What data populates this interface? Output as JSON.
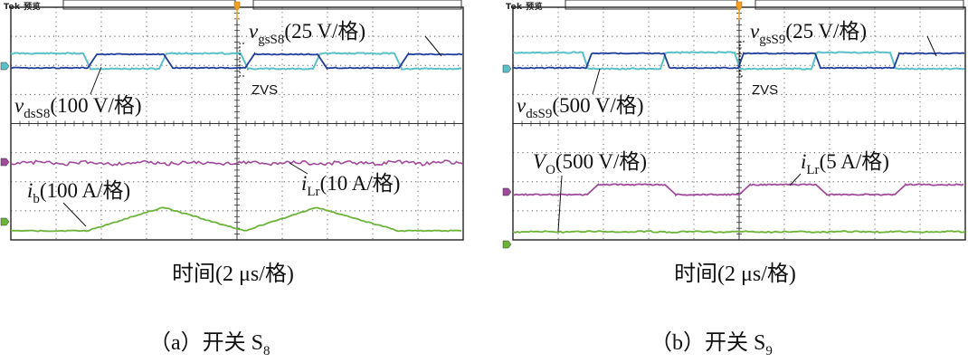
{
  "chart_data": [
    {
      "type": "line",
      "panel": "a",
      "oscilloscope_header": "Tek 预览",
      "xlabel": "时间(2 μs/格)",
      "caption": {
        "prefix": "（a）开关 S",
        "subscript": "8"
      },
      "annotations": {
        "zvs": "ZVS"
      },
      "series": [
        {
          "name": "v_gsS8",
          "label_main": "v",
          "label_sub": "gsS8",
          "label_rest": "(25 V/格)",
          "color": "#1f3d99",
          "type": "square_pulse"
        },
        {
          "name": "v_dsS8",
          "label_main": "v",
          "label_sub": "dsS8",
          "label_rest": "(100 V/格)",
          "color": "#5bc0c8",
          "type": "square_pulse"
        },
        {
          "name": "i_Lr",
          "label_main": "i",
          "label_sub": "Lr",
          "label_rest": "(10 A/格)",
          "color": "#a04a9c",
          "type": "noisy_flat"
        },
        {
          "name": "i_b",
          "label_main": "i",
          "label_sub": "b",
          "label_rest": "(100 A/格)",
          "color": "#6cb339",
          "type": "triangle"
        }
      ]
    },
    {
      "type": "line",
      "panel": "b",
      "oscilloscope_header": "Tek 预览",
      "xlabel": "时间(2 μs/格)",
      "caption": {
        "prefix": "（b）开关 S",
        "subscript": "9"
      },
      "annotations": {
        "zvs": "ZVS"
      },
      "series": [
        {
          "name": "v_gsS9",
          "label_main": "v",
          "label_sub": "gsS9",
          "label_rest": "(25 V/格)",
          "color": "#1f3d99",
          "type": "square_pulse"
        },
        {
          "name": "v_dsS9",
          "label_main": "v",
          "label_sub": "dsS9",
          "label_rest": "(500 V/格)",
          "color": "#5bc0c8",
          "type": "square_pulse"
        },
        {
          "name": "V_O",
          "label_main": "V",
          "label_sub": "O",
          "label_rest": "(500 V/格)",
          "color": "#6cb339",
          "type": "flat"
        },
        {
          "name": "i_Lr",
          "label_main": "i",
          "label_sub": "Lr",
          "label_rest": "(5 A/格)",
          "color": "#a04a9c",
          "type": "square_pulse"
        }
      ]
    }
  ]
}
